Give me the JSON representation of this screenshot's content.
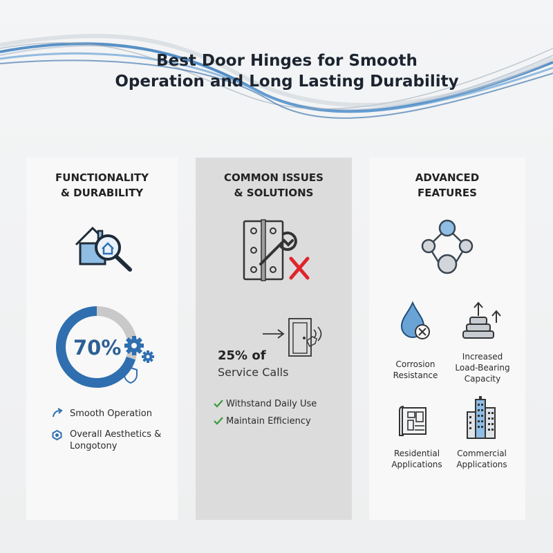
{
  "title": {
    "line1": "Best Door Hinges for Smooth",
    "line2": "Operation and Long Lasting Durability"
  },
  "panels": [
    {
      "heading_line1": "FUNCTIONALITY",
      "heading_line2": "& DURABILITY",
      "icon": "house-search-icon",
      "ring": {
        "value_label": "70%",
        "fraction": 0.7
      },
      "items": [
        {
          "icon": "curved-arrow-icon",
          "label": "Smooth Operation"
        },
        {
          "icon": "hexagon-gear-icon",
          "label_line1": "Overall Aesthetics &",
          "label_line2": "Longotony"
        }
      ]
    },
    {
      "heading_line1": "COMMON ISSUES",
      "heading_line2": "& SOLUTIONS",
      "icon": "hinge-wrench-icon",
      "stat": {
        "value": "25% of",
        "label": "Service Calls"
      },
      "items": [
        {
          "icon": "checkmark-icon",
          "label": "Withstand Daily Use"
        },
        {
          "icon": "checkmark-icon",
          "label": "Maintain Efficiency"
        }
      ]
    },
    {
      "heading_line1": "ADVANCED",
      "heading_line2": "FEATURES",
      "icon": "network-nodes-icon",
      "features": [
        {
          "icon": "water-drop-icon",
          "label_line1": "Corrosion",
          "label_line2": "Resistance"
        },
        {
          "icon": "stacked-weights-icon",
          "label_line1": "Increased",
          "label_line2": "Load-Bearing",
          "label_line3": "Capacity"
        },
        {
          "icon": "blueprint-icon",
          "label_line1": "Residential",
          "label_line2": "Applications"
        },
        {
          "icon": "buildings-icon",
          "label_line1": "Commercial",
          "label_line2": "Applications"
        }
      ]
    }
  ],
  "colors": {
    "primary_blue": "#2f6fb0",
    "light_blue": "#8fbde3",
    "ring_gray": "#c9c9c9",
    "check_green": "#3a9a3a",
    "cross_red": "#e0242a"
  }
}
